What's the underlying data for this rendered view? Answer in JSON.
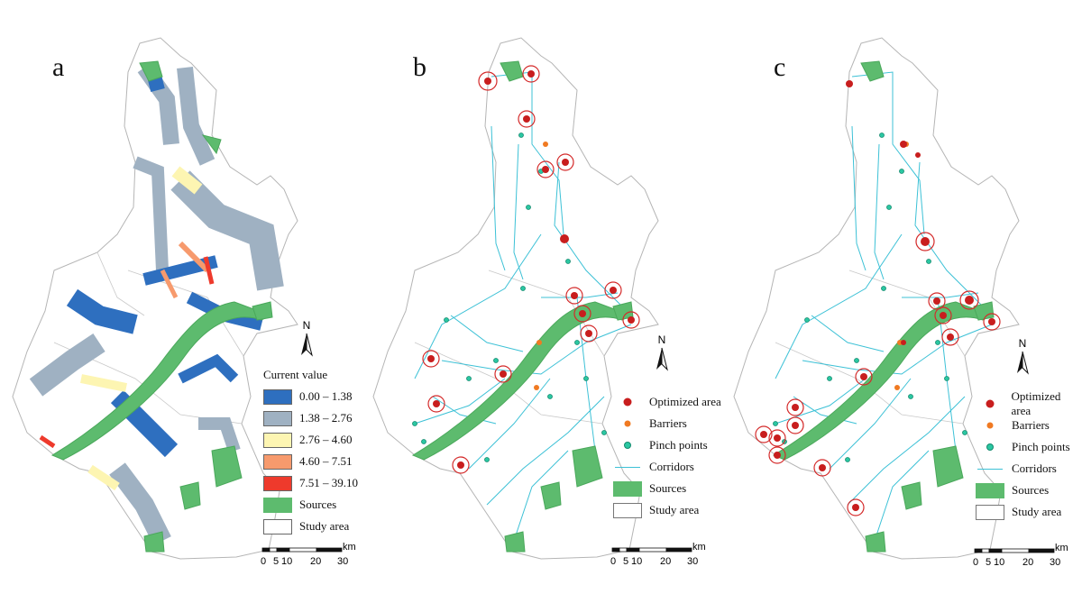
{
  "panels": [
    {
      "label": "a"
    },
    {
      "label": "b"
    },
    {
      "label": "c"
    }
  ],
  "legend_a": {
    "title": "Current value",
    "classes": [
      {
        "label": "0.00 – 1.38",
        "color": "#2e6fbf"
      },
      {
        "label": "1.38 – 2.76",
        "color": "#9fb1c2"
      },
      {
        "label": "2.76 – 4.60",
        "color": "#fdf5b2"
      },
      {
        "label": "4.60 – 7.51",
        "color": "#f79a6d"
      },
      {
        "label": "7.51 – 39.10",
        "color": "#ee3a2c"
      },
      {
        "label": "Sources",
        "color": "#5dbb6e"
      },
      {
        "label": "Study area",
        "color": "#ffffff"
      }
    ]
  },
  "legend_bc": {
    "items": [
      {
        "label": "Optimized area",
        "kind": "optimized",
        "color": "#c81e1e"
      },
      {
        "label": "Barriers",
        "kind": "barrier",
        "color": "#f07a22"
      },
      {
        "label": "Pinch points",
        "kind": "pinch",
        "color": "#2bc7a2"
      },
      {
        "label": "Corridors",
        "kind": "corridor",
        "color": "#3cc1d6"
      },
      {
        "label": "Sources",
        "kind": "source",
        "color": "#5dbb6e"
      },
      {
        "label": "Study area",
        "kind": "study",
        "color": "#ffffff"
      }
    ]
  },
  "north_arrow": {
    "label": "N"
  },
  "scale_bar": {
    "unit": "km",
    "ticks": [
      "0",
      "5",
      "10",
      "20",
      "30"
    ]
  },
  "colors": {
    "boundary": "#b5b5b5",
    "source": "#5dbb6e",
    "corridor": "#3cc1d6"
  }
}
